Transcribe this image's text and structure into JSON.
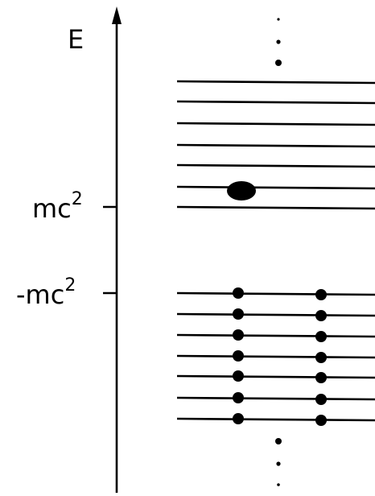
{
  "axis": {
    "label": "E"
  },
  "ticks": [
    {
      "base": "mc",
      "exponent": "2"
    },
    {
      "base": "-mc",
      "exponent": "2"
    }
  ],
  "levels": {
    "upper_band_count": 7,
    "lower_band_count": 7,
    "occupied_in_upper_band": 1,
    "electrons_per_lower_level": 2
  },
  "colors": {
    "ink": "#000000",
    "background": "#ffffff"
  }
}
